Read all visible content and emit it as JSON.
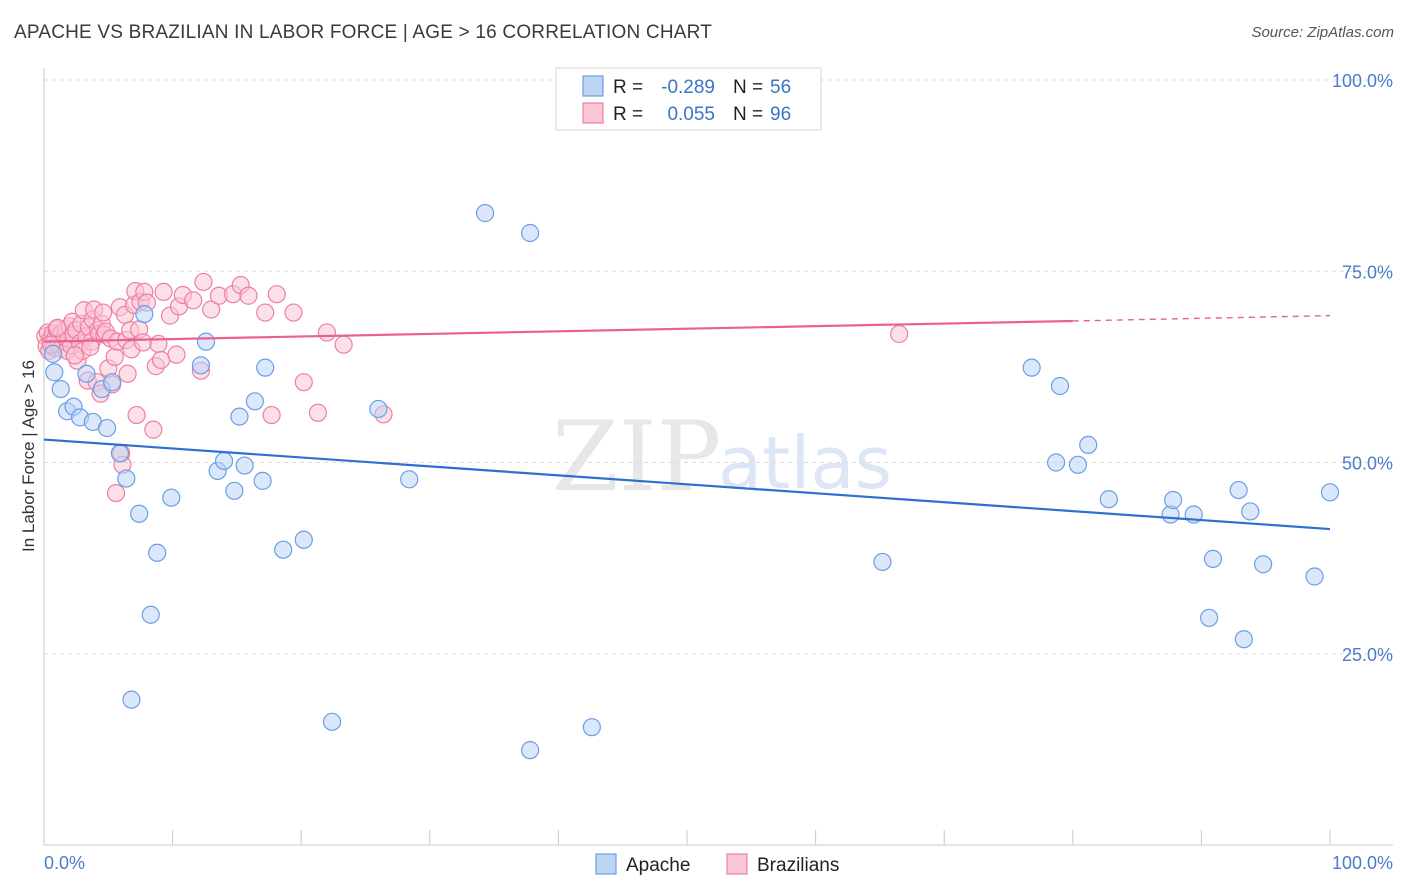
{
  "title": "APACHE VS BRAZILIAN IN LABOR FORCE | AGE > 16 CORRELATION CHART",
  "source": "Source: ZipAtlas.com",
  "watermark": {
    "a": "ZIP",
    "b": "atlas"
  },
  "colors": {
    "apache": "#6a9fe4",
    "apache_fill": "#bdd4f5",
    "apache_line": "#2f6fcf",
    "brazilians": "#ef7fa2",
    "brazilians_fill": "#f9c6d6",
    "brazilians_line": "#e8628f",
    "grid": "#dcdcdc",
    "axis_text": "#4a7cc9"
  },
  "legend_top": {
    "rows": [
      {
        "r_label": "R =",
        "r_value": "-0.289",
        "n_label": "N =",
        "n_value": "56"
      },
      {
        "r_label": "R =",
        "r_value": "0.055",
        "n_label": "N =",
        "n_value": "96"
      }
    ]
  },
  "legend_bottom": {
    "apache": "Apache",
    "brazilians": "Brazilians"
  },
  "chart_data": {
    "type": "scatter",
    "title": "APACHE VS BRAZILIAN IN LABOR FORCE | AGE > 16 CORRELATION CHART",
    "xlabel": "",
    "ylabel": "In Labor Force | Age > 16",
    "xlim": [
      0,
      100
    ],
    "ylim": [
      0,
      100
    ],
    "x_tick_labels": [
      "0.0%",
      "100.0%"
    ],
    "y_ticks": [
      25,
      50,
      75,
      100
    ],
    "y_tick_labels": [
      "25.0%",
      "50.0%",
      "75.0%",
      "100.0%"
    ],
    "grid": true,
    "series": [
      {
        "name": "Apache",
        "r": -0.289,
        "n": 56,
        "trend": {
          "x": [
            0,
            100
          ],
          "y": [
            53.0,
            41.3
          ]
        },
        "points": [
          [
            0.7,
            64.2
          ],
          [
            0.8,
            61.8
          ],
          [
            1.3,
            59.6
          ],
          [
            1.8,
            56.7
          ],
          [
            2.3,
            57.3
          ],
          [
            2.8,
            55.9
          ],
          [
            3.3,
            61.6
          ],
          [
            3.8,
            55.3
          ],
          [
            4.5,
            59.6
          ],
          [
            4.9,
            54.5
          ],
          [
            5.3,
            60.5
          ],
          [
            5.9,
            51.2
          ],
          [
            6.4,
            47.9
          ],
          [
            7.4,
            43.3
          ],
          [
            7.8,
            69.4
          ],
          [
            8.3,
            30.1
          ],
          [
            8.8,
            38.2
          ],
          [
            9.9,
            45.4
          ],
          [
            6.8,
            19.0
          ],
          [
            12.2,
            62.7
          ],
          [
            12.6,
            65.8
          ],
          [
            13.5,
            48.9
          ],
          [
            14.0,
            50.2
          ],
          [
            14.8,
            46.3
          ],
          [
            15.2,
            56.0
          ],
          [
            15.6,
            49.6
          ],
          [
            16.4,
            58.0
          ],
          [
            17.0,
            47.6
          ],
          [
            17.2,
            62.4
          ],
          [
            18.6,
            38.6
          ],
          [
            20.2,
            39.9
          ],
          [
            22.4,
            16.1
          ],
          [
            26.0,
            57.0
          ],
          [
            28.4,
            47.8
          ],
          [
            34.3,
            82.6
          ],
          [
            37.8,
            80.0
          ],
          [
            37.8,
            12.4
          ],
          [
            42.6,
            15.4
          ],
          [
            65.2,
            37.0
          ],
          [
            76.8,
            62.4
          ],
          [
            79.0,
            60.0
          ],
          [
            78.7,
            50.0
          ],
          [
            80.4,
            49.7
          ],
          [
            81.2,
            52.3
          ],
          [
            82.8,
            45.2
          ],
          [
            87.6,
            43.2
          ],
          [
            87.8,
            45.1
          ],
          [
            89.4,
            43.2
          ],
          [
            90.6,
            29.7
          ],
          [
            90.9,
            37.4
          ],
          [
            92.9,
            46.4
          ],
          [
            93.3,
            26.9
          ],
          [
            93.8,
            43.6
          ],
          [
            94.8,
            36.7
          ],
          [
            98.8,
            35.1
          ],
          [
            100.0,
            46.1
          ]
        ]
      },
      {
        "name": "Brazilians",
        "r": 0.055,
        "n": 96,
        "trend": {
          "x": [
            0,
            80
          ],
          "y": [
            65.8,
            68.5
          ]
        },
        "trend_dashed": {
          "x": [
            80,
            100
          ],
          "y": [
            68.5,
            69.2
          ]
        },
        "points": [
          [
            0.1,
            66.5
          ],
          [
            0.2,
            65.2
          ],
          [
            0.3,
            67.0
          ],
          [
            0.4,
            64.6
          ],
          [
            0.5,
            66.1
          ],
          [
            0.6,
            65.7
          ],
          [
            0.7,
            66.9
          ],
          [
            0.8,
            65.0
          ],
          [
            0.9,
            66.3
          ],
          [
            1.0,
            67.4
          ],
          [
            1.1,
            65.5
          ],
          [
            1.2,
            66.6
          ],
          [
            1.3,
            64.9
          ],
          [
            1.4,
            67.0
          ],
          [
            1.5,
            65.9
          ],
          [
            1.6,
            66.4
          ],
          [
            1.7,
            67.4
          ],
          [
            1.8,
            64.6
          ],
          [
            1.9,
            66.2
          ],
          [
            2.0,
            67.8
          ],
          [
            2.1,
            65.3
          ],
          [
            2.2,
            68.4
          ],
          [
            2.3,
            66.7
          ],
          [
            2.5,
            67.3
          ],
          [
            2.6,
            63.3
          ],
          [
            2.8,
            65.6
          ],
          [
            2.9,
            68.1
          ],
          [
            3.0,
            64.6
          ],
          [
            3.1,
            69.9
          ],
          [
            3.3,
            66.5
          ],
          [
            3.4,
            60.7
          ],
          [
            3.5,
            67.7
          ],
          [
            3.7,
            65.8
          ],
          [
            3.8,
            68.7
          ],
          [
            3.9,
            70.0
          ],
          [
            4.1,
            60.5
          ],
          [
            4.2,
            67.3
          ],
          [
            4.3,
            66.8
          ],
          [
            4.4,
            59.0
          ],
          [
            4.5,
            68.1
          ],
          [
            4.6,
            69.6
          ],
          [
            4.7,
            66.7
          ],
          [
            4.8,
            67.1
          ],
          [
            5.0,
            62.3
          ],
          [
            5.2,
            66.2
          ],
          [
            5.3,
            60.2
          ],
          [
            5.5,
            63.8
          ],
          [
            5.6,
            46.0
          ],
          [
            5.7,
            65.8
          ],
          [
            5.9,
            70.3
          ],
          [
            6.0,
            51.2
          ],
          [
            6.1,
            49.7
          ],
          [
            6.3,
            69.3
          ],
          [
            6.4,
            66.0
          ],
          [
            6.5,
            61.6
          ],
          [
            6.7,
            67.3
          ],
          [
            6.8,
            64.8
          ],
          [
            7.0,
            70.6
          ],
          [
            7.1,
            72.4
          ],
          [
            7.2,
            56.2
          ],
          [
            7.4,
            67.4
          ],
          [
            7.5,
            71.0
          ],
          [
            7.7,
            65.7
          ],
          [
            7.8,
            72.3
          ],
          [
            8.0,
            70.9
          ],
          [
            8.5,
            54.3
          ],
          [
            8.7,
            62.6
          ],
          [
            8.9,
            65.5
          ],
          [
            9.1,
            63.4
          ],
          [
            9.3,
            72.3
          ],
          [
            9.8,
            69.2
          ],
          [
            10.3,
            64.1
          ],
          [
            10.5,
            70.4
          ],
          [
            10.8,
            71.9
          ],
          [
            11.6,
            71.2
          ],
          [
            12.2,
            62.0
          ],
          [
            12.4,
            73.6
          ],
          [
            13.0,
            70.0
          ],
          [
            13.6,
            71.8
          ],
          [
            14.7,
            72.0
          ],
          [
            15.3,
            73.2
          ],
          [
            15.9,
            71.8
          ],
          [
            17.2,
            69.6
          ],
          [
            17.7,
            56.2
          ],
          [
            18.1,
            72.0
          ],
          [
            19.4,
            69.6
          ],
          [
            20.2,
            60.5
          ],
          [
            21.3,
            56.5
          ],
          [
            22.0,
            67.0
          ],
          [
            23.3,
            65.4
          ],
          [
            26.4,
            56.3
          ],
          [
            66.5,
            66.8
          ],
          [
            3.6,
            65.1
          ],
          [
            2.4,
            64.0
          ],
          [
            1.05,
            67.6
          ],
          [
            0.55,
            65.4
          ]
        ]
      }
    ]
  }
}
